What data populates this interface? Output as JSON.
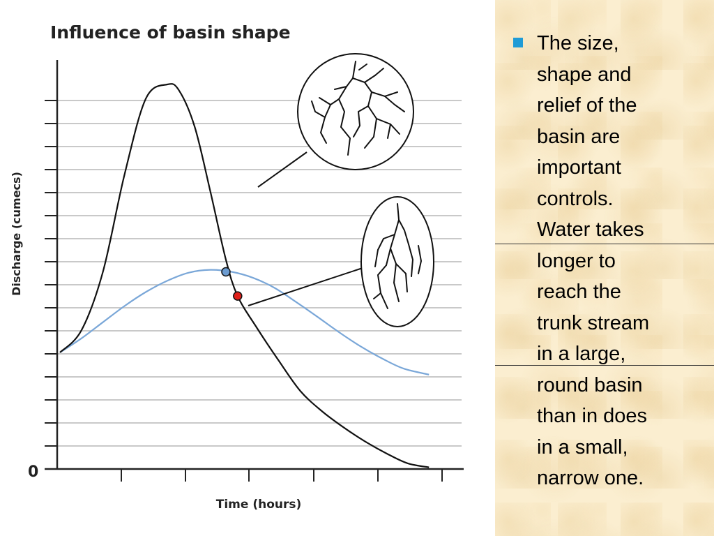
{
  "chart_data": {
    "type": "line",
    "title": "Influence of basin shape",
    "xlabel": "Time (hours)",
    "ylabel": "Discharge (cumecs)",
    "origin_label": "0",
    "xlim": [
      0,
      10
    ],
    "ylim": [
      0,
      10
    ],
    "y_minor_ticks": 16,
    "x_ticks": 6,
    "grid": true,
    "series": [
      {
        "key": "round-basin",
        "color": "#111111",
        "x": [
          0,
          0.55,
          1.1,
          1.65,
          2.2,
          2.75,
          3.05,
          3.45,
          3.85,
          4.25,
          4.55,
          5.05,
          5.6,
          6.15,
          6.7,
          7.25,
          7.8,
          8.35,
          8.9,
          9.45
        ],
        "y": [
          3.0,
          3.55,
          5.0,
          7.4,
          9.3,
          9.65,
          9.5,
          8.6,
          7.0,
          5.3,
          4.4,
          3.6,
          2.8,
          2.05,
          1.55,
          1.15,
          0.8,
          0.5,
          0.25,
          0.15
        ]
      },
      {
        "key": "narrow-basin",
        "color": "#7aa7d8",
        "x": [
          0,
          0.55,
          1.1,
          1.65,
          2.2,
          2.75,
          3.3,
          3.85,
          4.4,
          4.95,
          5.5,
          6.05,
          6.6,
          7.15,
          7.7,
          8.25,
          8.8,
          9.45
        ],
        "y": [
          3.0,
          3.35,
          3.75,
          4.15,
          4.5,
          4.78,
          4.98,
          5.05,
          5.0,
          4.85,
          4.6,
          4.25,
          3.88,
          3.5,
          3.15,
          2.85,
          2.6,
          2.45
        ]
      }
    ],
    "markers": [
      {
        "series": "round-basin",
        "x": 4.55,
        "y": 4.4,
        "color": "#e0201a"
      },
      {
        "series": "narrow-basin",
        "x": 4.25,
        "y": 5.0,
        "color": "#6b9bd0"
      }
    ]
  },
  "panel": {
    "bullet_lines": [
      "The size,",
      "shape and",
      "relief of the",
      "basin are",
      "important",
      "controls.",
      "Water takes",
      "longer to",
      "reach the",
      "trunk stream",
      "in a large,",
      "round basin",
      "than in does",
      "in a small,",
      "narrow one."
    ],
    "bullet_color": "#1f9bd6"
  }
}
